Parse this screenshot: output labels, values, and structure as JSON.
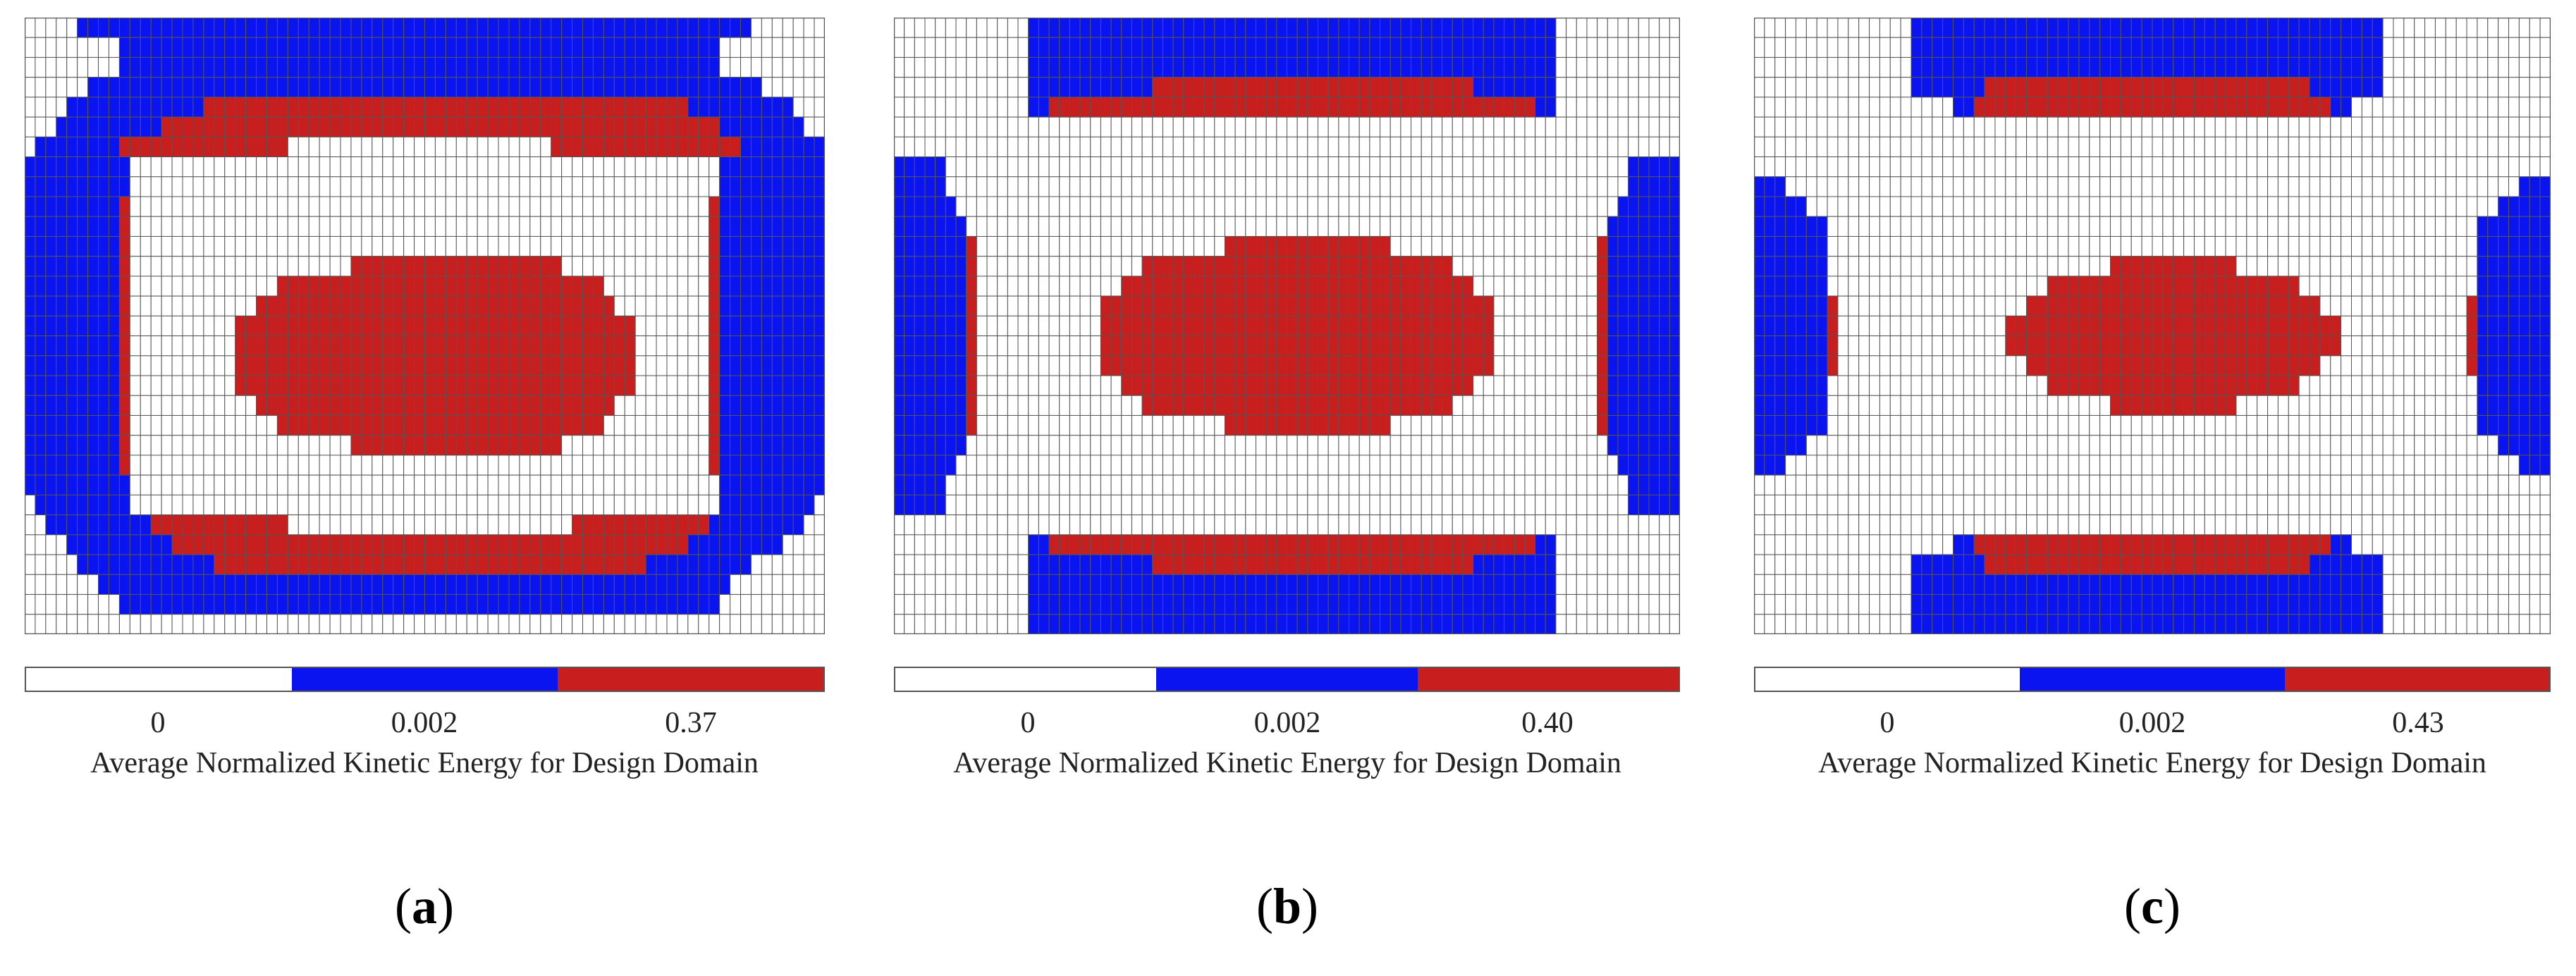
{
  "colors": {
    "low": "#ffffff",
    "mid": "#0a14f0",
    "high": "#c81e1e",
    "grid_line": "#555555"
  },
  "chart_data": [
    {
      "type": "heatmap",
      "panel_label": "a",
      "colorbar": {
        "ticks": [
          "0",
          "0.002",
          "0.37"
        ],
        "label": "Average Normalized Kinetic Energy for Design Domain"
      },
      "legend": {
        "0": "low",
        "1": "mid",
        "2": "high"
      },
      "grid_rows": [
        "0000011111111111111111111111111111111111111111111111111111111111111110000000",
        "0000000001111111111111111111111111111111111111111111111111111111110000000000",
        "0000000001111111111111111111111111111111111111111111111111111111110000000000",
        "0000001111111111111111111111111111111111111111111111111111111111111111000000",
        "0000111111111111122222222222222222222222222222222222222222222221111111111000",
        "0001111111111222222222222222222222222222222222222222222222222222221111111100",
        "0111111112222222222222222000000000000000000000000022222222222222222211111111",
        "1111111111000000000000000000000000000000000000000000000000000000001111111111",
        "1111111111000000000000000000000000000000000000000000000000000000001111111111",
        "1111111112000000000000000000000000000000000000000000000000000000021111111111",
        "1111111112000000000000000000000000000000000000000000000000000000021111111111",
        "1111111112000000000000000000000000000000000000000000000000000000021111111111",
        "1111111112000000000000000000000222222222222222222220000000000000021111111111",
        "1111111112000000000000002222222222222222222222222222222000000000021111111111",
        "1111111112000000000000222222222222222222222222222222222200000000021111111111",
        "1111111112000000000022222222222222222222222222222222222222000000021111111111",
        "1111111112000000000022222222222222222222222222222222222222000000021111111111",
        "1111111112000000000022222222222222222222222222222222222222000000021111111111",
        "1111111112000000000022222222222222222222222222222222222222000000021111111111",
        "1111111112000000000000222222222222222222222222222222222200000000021111111111",
        "1111111112000000000000002222222222222222222222222222222000000000021111111111",
        "1111111112000000000000000000000222222222222222222220000000000000021111111111",
        "1111111112000000000000000000000000000000000000000000000000000000021111111111",
        "1111111111000000000000000000000000000000000000000000000000000000001111111111",
        "0111111111000000000000000000000000000000000000000000000000000000001111111110",
        "0011111111112222222222222000000000000000000000000000222222222222211111111100",
        "0000111111111122222222222222222222222222222222222222222222222221111111110000",
        "0000011111111111112222222222222222222222222222222222222222211111111110000000",
        "0000000111111111111111111111111111111111111111111111111111111111111000000000",
        "0000000001111111111111111111111111111111111111111111111111111111110000000000",
        "0000000000000000000000000000000000000000000000000000000000000000000000000000"
      ]
    },
    {
      "type": "heatmap",
      "panel_label": "b",
      "colorbar": {
        "ticks": [
          "0",
          "0.002",
          "0.40"
        ],
        "label": "Average Normalized Kinetic Energy for Design Domain"
      },
      "legend": {
        "0": "low",
        "1": "mid",
        "2": "high"
      },
      "grid_rows": [
        "0000000000000111111111111111111111111111111111111111111111111111000000000000",
        "0000000000000111111111111111111111111111111111111111111111111111000000000000",
        "0000000000000111111111111111111111111111111111111111111111111111000000000000",
        "0000000000000111111111111222222222222222222222222222222211111111000000000000",
        "0000000000000112222222222222222222222222222222222222222222222211000000000000",
        "0000000000000000000000000000000000000000000000000000000000000000000000000000",
        "0000000000000000000000000000000000000000000000000000000000000000000000000000",
        "1111100000000000000000000000000000000000000000000000000000000000000000011111",
        "1111100000000000000000000000000000000000000000000000000000000000000000011111",
        "1111110000000000000000000000000000000000000000000000000000000000000000111111",
        "1111111000000000000000000000000000000000000000000000000000000000000001111111",
        "1111111200000000000000000000000022222222222222220000000000000000000021111111",
        "1111111200000000000000002222222222222222222222222222220000000000000021111111",
        "1111111200000000000000222222222222222222222222222222222200000000000021111111",
        "1111111200000000000022222222222222222222222222222222222222000000000021111111",
        "1111111200000000000022222222222222222222222222222222222222000000000021111111",
        "1111111200000000000022222222222222222222222222222222222222000000000021111111",
        "1111111200000000000022222222222222222222222222222222222222000000000021111111",
        "1111111200000000000000222222222222222222222222222222222200000000000021111111",
        "1111111200000000000000002222222222222222222222222222220000000000000021111111",
        "1111111200000000000000000000000022222222222222220000000000000000000021111111",
        "1111111000000000000000000000000000000000000000000000000000000000000001111111",
        "1111110000000000000000000000000000000000000000000000000000000000000000111111",
        "1111100000000000000000000000000000000000000000000000000000000000000000011111",
        "1111100000000000000000000000000000000000000000000000000000000000000000011111",
        "0000000000000000000000000000000000000000000000000000000000000000000000000000",
        "0000000000000112222222222222222222222222222222222222222222222211000000000000",
        "0000000000000111111111111222222222222222222222222222222211111111000000000000",
        "0000000000000111111111111111111111111111111111111111111111111111000000000000",
        "0000000000000111111111111111111111111111111111111111111111111111000000000000",
        "0000000000000111111111111111111111111111111111111111111111111111000000000000"
      ]
    },
    {
      "type": "heatmap",
      "panel_label": "c",
      "colorbar": {
        "ticks": [
          "0",
          "0.002",
          "0.43"
        ],
        "label": "Average Normalized Kinetic Energy for Design Domain"
      },
      "legend": {
        "0": "low",
        "1": "mid",
        "2": "high"
      },
      "grid_rows": [
        "0000000000000001111111111111111111111111111111111111111111110000000000000000",
        "0000000000000001111111111111111111111111111111111111111111110000000000000000",
        "0000000000000001111111111111111111111111111111111111111111110000000000000000",
        "0000000000000001111111222222222222222222222222222222211111110000000000000000",
        "0000000000000000000112222222222222222222222222222222222110000000000000000000",
        "0000000000000000000000000000000000000000000000000000000000000000000000000000",
        "0000000000000000000000000000000000000000000000000000000000000000000000000000",
        "0000000000000000000000000000000000000000000000000000000000000000000000000000",
        "1110000000000000000000000000000000000000000000000000000000000000000000000111",
        "1111100000000000000000000000000000000000000000000000000000000000000000011111",
        "1111111000000000000000000000000000000000000000000000000000000000000001111111",
        "1111111000000000000000000000000000000000000000000000000000000000000001111111",
        "1111111000000000000000000000000000222222222222000000000000000000000001111111",
        "1111111000000000000000000000222222222222222222222222000000000000000001111111",
        "1111111200000000000000000022222222222222222222222222220000000000000021111111",
        "1111111200000000000000002222222222222222222222222222222200000000000021111111",
        "1111111200000000000000002222222222222222222222222222222200000000000021111111",
        "1111111200000000000000000022222222222222222222222222220000000000000021111111",
        "1111111000000000000000000000222222222222222222222222000000000000000001111111",
        "1111111000000000000000000000000000222222222222000000000000000000000001111111",
        "1111111000000000000000000000000000000000000000000000000000000000000001111111",
        "1111100000000000000000000000000000000000000000000000000000000000000000011111",
        "1110000000000000000000000000000000000000000000000000000000000000000000000111",
        "0000000000000000000000000000000000000000000000000000000000000000000000000000",
        "0000000000000000000000000000000000000000000000000000000000000000000000000000",
        "0000000000000000000000000000000000000000000000000000000000000000000000000000",
        "0000000000000000000112222222222222222222222222222222222110000000000000000000",
        "0000000000000001111111222222222222222222222222222222211111110000000000000000",
        "0000000000000001111111111111111111111111111111111111111111110000000000000000",
        "0000000000000001111111111111111111111111111111111111111111110000000000000000",
        "0000000000000001111111111111111111111111111111111111111111110000000000000000"
      ]
    }
  ]
}
